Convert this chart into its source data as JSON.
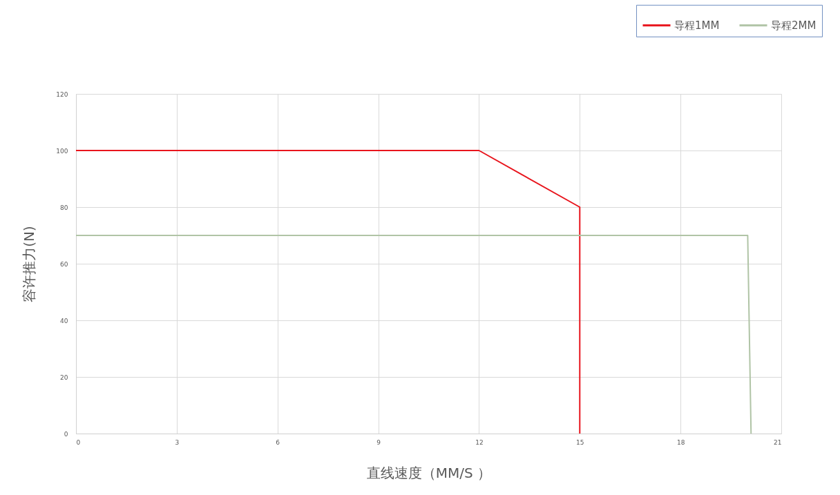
{
  "chart_data": {
    "type": "line",
    "xlabel": "直线速度（MM/S ）",
    "ylabel": "容许推力(N)",
    "series": [
      {
        "name": "导程1MM",
        "color": "#e8141c",
        "x": [
          0,
          12,
          15,
          15
        ],
        "values": [
          100,
          100,
          80,
          0
        ]
      },
      {
        "name": "导程2MM",
        "color": "#b0c4a6",
        "x": [
          0,
          20,
          20.1
        ],
        "values": [
          70,
          70,
          0
        ]
      }
    ],
    "xlim": [
      0,
      21
    ],
    "xticks": [
      0,
      3,
      6,
      9,
      12,
      15,
      18,
      21
    ],
    "ylim": [
      0,
      120
    ],
    "yticks": [
      0,
      20,
      40,
      60,
      80,
      100,
      120
    ],
    "grid": true,
    "legend": "top right"
  }
}
